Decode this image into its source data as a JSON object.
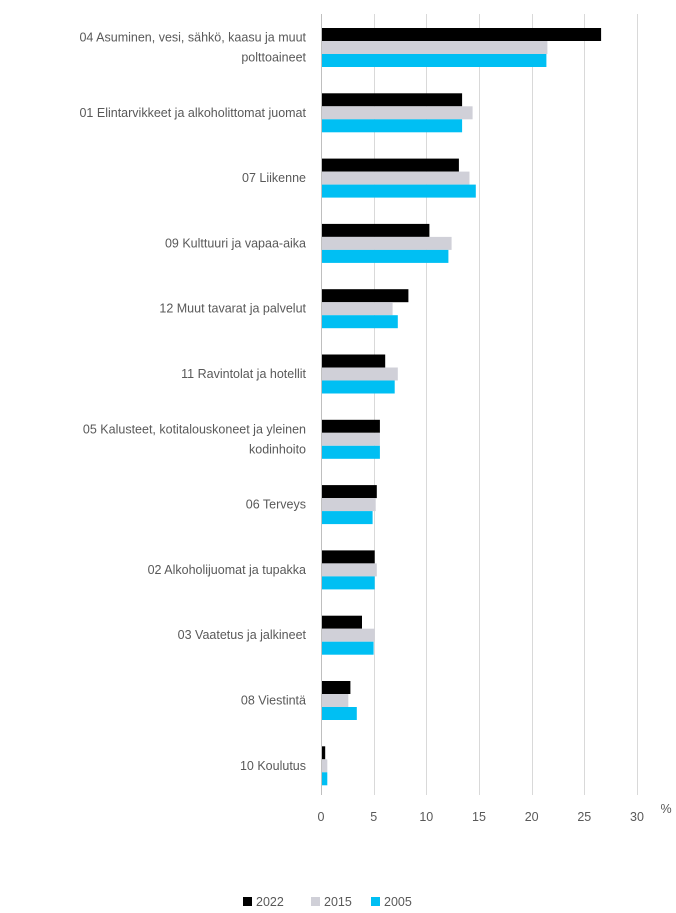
{
  "chart_data": {
    "type": "bar",
    "orientation": "horizontal",
    "categories": [
      "04 Asuminen, vesi, sähkö, kaasu ja muut polttoaineet",
      "01 Elintarvikkeet ja alkoholittomat juomat",
      "07 Liikenne",
      "09 Kulttuuri ja vapaa-aika",
      "12 Muut tavarat ja palvelut",
      "11 Ravintolat ja hotellit",
      "05 Kalusteet, kotitalouskoneet ja yleinen kodinhoito",
      "06 Terveys",
      "02 Alkoholijuomat ja tupakka",
      "03 Vaatetus ja jalkineet",
      "08 Viestintä",
      "10 Koulutus"
    ],
    "category_lines": [
      [
        "04 Asuminen, vesi, sähkö, kaasu ja muut",
        "polttoaineet"
      ],
      [
        "01 Elintarvikkeet ja alkoholittomat juomat"
      ],
      [
        "07 Liikenne"
      ],
      [
        "09 Kulttuuri ja vapaa-aika"
      ],
      [
        "12 Muut tavarat ja palvelut"
      ],
      [
        "11 Ravintolat ja hotellit"
      ],
      [
        "05 Kalusteet, kotitalouskoneet ja yleinen",
        "kodinhoito"
      ],
      [
        "06 Terveys"
      ],
      [
        "02 Alkoholijuomat ja tupakka"
      ],
      [
        "03 Vaatetus ja jalkineet"
      ],
      [
        "08 Viestintä"
      ],
      [
        "10 Koulutus"
      ]
    ],
    "series": [
      {
        "name": "2022",
        "color": "#000000",
        "values": [
          26.5,
          13.3,
          13.0,
          10.2,
          8.2,
          6.0,
          5.5,
          5.2,
          5.0,
          3.8,
          2.7,
          0.3
        ]
      },
      {
        "name": "2015",
        "color": "#d0d0d8",
        "values": [
          21.4,
          14.3,
          14.0,
          12.3,
          6.7,
          7.2,
          5.5,
          5.1,
          5.2,
          5.0,
          2.5,
          0.5
        ]
      },
      {
        "name": "2005",
        "color": "#00bff3",
        "values": [
          21.3,
          13.3,
          14.6,
          12.0,
          7.2,
          6.9,
          5.5,
          4.8,
          5.0,
          4.9,
          3.3,
          0.5
        ]
      }
    ],
    "xlim": [
      0,
      30
    ],
    "xticks": [
      0,
      5,
      10,
      15,
      20,
      25,
      30
    ],
    "xlabel": "%",
    "title": "",
    "grid": true,
    "legend_position": "bottom"
  }
}
